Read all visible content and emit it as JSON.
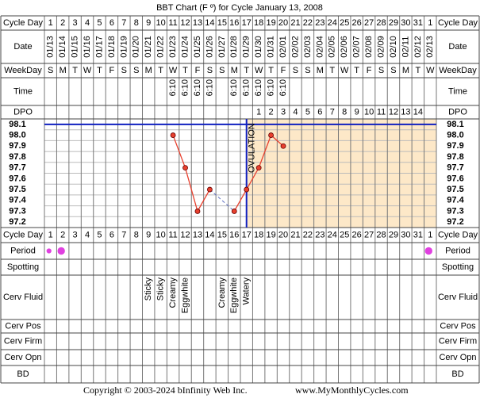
{
  "title": "BBT Chart (F º) for Cycle January 13, 2008",
  "row_labels": {
    "cycle_day": "Cycle Day",
    "date": "Date",
    "weekday": "WeekDay",
    "time": "Time",
    "dpo": "DPO",
    "period": "Period",
    "spotting": "Spotting",
    "cerv_fluid": "Cerv Fluid",
    "cerv_pos": "Cerv Pos",
    "cerv_firm": "Cerv Firm",
    "cerv_opn": "Cerv Opn",
    "bd": "BD"
  },
  "cycle_days": [
    1,
    2,
    3,
    4,
    5,
    6,
    7,
    8,
    9,
    10,
    11,
    12,
    13,
    14,
    15,
    16,
    17,
    18,
    19,
    20,
    21,
    22,
    23,
    24,
    25,
    26,
    27,
    28,
    29,
    30,
    31,
    1
  ],
  "dates": [
    "01/13",
    "01/14",
    "01/15",
    "01/16",
    "01/17",
    "01/18",
    "01/19",
    "01/20",
    "01/21",
    "01/22",
    "01/23",
    "01/24",
    "01/25",
    "01/26",
    "01/27",
    "01/28",
    "01/29",
    "01/30",
    "01/31",
    "02/01",
    "02/02",
    "02/03",
    "02/04",
    "02/05",
    "02/06",
    "02/07",
    "02/08",
    "02/09",
    "02/10",
    "02/11",
    "02/12",
    "02/13"
  ],
  "weekdays": [
    "S",
    "M",
    "T",
    "W",
    "T",
    "F",
    "S",
    "S",
    "M",
    "T",
    "W",
    "T",
    "F",
    "S",
    "S",
    "M",
    "T",
    "W",
    "T",
    "F",
    "S",
    "S",
    "M",
    "T",
    "W",
    "T",
    "F",
    "S",
    "S",
    "M",
    "T",
    "W"
  ],
  "times": [
    null,
    null,
    null,
    null,
    null,
    null,
    null,
    null,
    null,
    null,
    "6:10",
    "6:10",
    "6:10",
    "6:10",
    null,
    "6:10",
    "6:10",
    "6:10",
    "6:10",
    "6:10",
    null,
    null,
    null,
    null,
    null,
    null,
    null,
    null,
    null,
    null,
    null,
    null
  ],
  "dpo": [
    null,
    null,
    null,
    null,
    null,
    null,
    null,
    null,
    null,
    null,
    null,
    null,
    null,
    null,
    null,
    null,
    null,
    1,
    2,
    3,
    4,
    5,
    6,
    7,
    8,
    9,
    10,
    11,
    12,
    13,
    14,
    null
  ],
  "period": [
    1,
    2,
    null,
    null,
    null,
    null,
    null,
    null,
    null,
    null,
    null,
    null,
    null,
    null,
    null,
    null,
    null,
    null,
    null,
    null,
    null,
    null,
    null,
    null,
    null,
    null,
    null,
    null,
    null,
    null,
    null,
    2
  ],
  "cerv_fluid": [
    null,
    null,
    null,
    null,
    null,
    null,
    null,
    null,
    "Sticky",
    "Sticky",
    "Creamy",
    "Eggwhite",
    null,
    null,
    "Creamy",
    "Eggwhite",
    "Watery",
    null,
    null,
    null,
    null,
    null,
    null,
    null,
    null,
    null,
    null,
    null,
    null,
    null,
    null,
    null
  ],
  "chart_data": {
    "type": "line",
    "values": [
      null,
      null,
      null,
      null,
      null,
      null,
      null,
      null,
      null,
      null,
      98.0,
      97.7,
      97.3,
      97.5,
      null,
      97.3,
      97.5,
      97.7,
      98.0,
      97.9,
      null,
      null,
      null,
      null,
      null,
      null,
      null,
      null,
      null,
      null,
      null,
      null
    ],
    "color": "#e8402e",
    "ylim": [
      97.15,
      98.15
    ],
    "yticks": [
      98.1,
      {
        "value": 98,
        "label": "98.0"
      },
      97.9,
      97.8,
      97.7,
      97.6,
      97.5,
      97.4,
      97.3,
      97.2
    ],
    "coverline": 98.1,
    "ovulation_day": 17,
    "ovulation_label": "OVULATION"
  },
  "footer": {
    "copyright": "Copyright © 2003-2024 bInfinity Web Inc.",
    "url": "www.MyMonthlyCycles.com"
  }
}
